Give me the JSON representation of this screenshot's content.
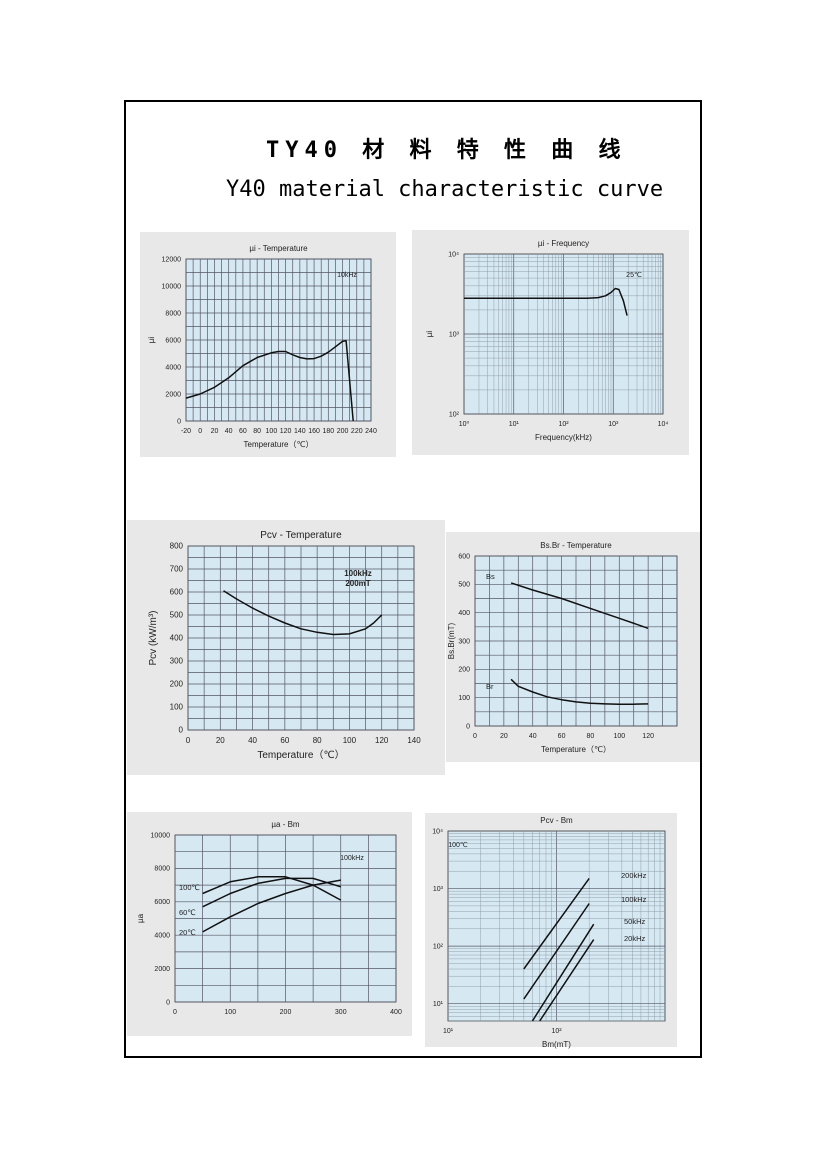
{
  "page": {
    "title_cn": "TY40 材 料 特 性 曲 线",
    "title_en": "Y40 material characteristic curve"
  },
  "chart_data": [
    {
      "id": "mu-temp",
      "type": "line",
      "title": "µi - Temperature",
      "xlabel": "Temperature（℃）",
      "ylabel": "µi",
      "xscale": "linear",
      "yscale": "linear",
      "xlim": [
        -20,
        240
      ],
      "ylim": [
        0,
        12000
      ],
      "xticks": [
        -20,
        0,
        20,
        40,
        60,
        80,
        100,
        120,
        140,
        160,
        180,
        200,
        220,
        240
      ],
      "yticks": [
        0,
        2000,
        4000,
        6000,
        8000,
        10000,
        12000
      ],
      "grid": true,
      "annotations": [
        {
          "text": "10kHz",
          "x": 200,
          "y": 10300
        }
      ],
      "series": [
        {
          "x": [
            -20,
            0,
            20,
            40,
            60,
            80,
            100,
            110,
            120,
            130,
            140,
            150,
            160,
            170,
            180,
            190,
            200,
            205,
            208,
            215
          ],
          "y": [
            1700,
            2000,
            2500,
            3200,
            4100,
            4700,
            5050,
            5150,
            5150,
            4900,
            4700,
            4600,
            4620,
            4800,
            5100,
            5500,
            5900,
            5950,
            4200,
            0
          ]
        }
      ]
    },
    {
      "id": "mu-freq",
      "type": "line",
      "title": "µi - Frequency",
      "xlabel": "Frequency(kHz)",
      "ylabel": "µi",
      "xscale": "log",
      "yscale": "log",
      "xlim": [
        1,
        10000
      ],
      "ylim": [
        100,
        10000
      ],
      "xticks": [
        1,
        10,
        100,
        1000,
        10000
      ],
      "xticklabels": [
        "10⁰",
        "10¹",
        "10²",
        "10³",
        "10⁴"
      ],
      "yticks": [
        100,
        1000,
        10000
      ],
      "yticklabels": [
        "10²",
        "10³",
        "10⁴"
      ],
      "grid": true,
      "annotations": [
        {
          "text": "25℃",
          "x": 2500,
          "y": 3000
        }
      ],
      "series": [
        {
          "x": [
            1,
            10,
            100,
            300,
            500,
            700,
            900,
            1100,
            1300,
            1600,
            1900
          ],
          "y": [
            2800,
            2800,
            2800,
            2800,
            2850,
            3000,
            3300,
            3700,
            3600,
            2600,
            1700
          ]
        }
      ]
    },
    {
      "id": "pcv-temp",
      "type": "line",
      "title": "Pcv - Temperature",
      "xlabel": "Temperature（℃）",
      "ylabel": "Pcv (kW/m³)",
      "xscale": "linear",
      "yscale": "linear",
      "xlim": [
        0,
        140
      ],
      "ylim": [
        0,
        800
      ],
      "xticks": [
        0,
        20,
        40,
        60,
        80,
        100,
        120,
        140
      ],
      "yticks": [
        0,
        100,
        200,
        300,
        400,
        500,
        600,
        700,
        800
      ],
      "grid": true,
      "annotations": [
        {
          "text": "100kHz",
          "x": 112,
          "y": 670
        },
        {
          "text": "200mT",
          "x": 112,
          "y": 630
        }
      ],
      "series": [
        {
          "x": [
            22,
            30,
            40,
            50,
            60,
            70,
            80,
            90,
            100,
            110,
            115,
            120
          ],
          "y": [
            605,
            570,
            530,
            495,
            465,
            440,
            425,
            415,
            418,
            440,
            465,
            500
          ]
        }
      ]
    },
    {
      "id": "bsbr-temp",
      "type": "line",
      "title": "Bs.Br - Temperature",
      "xlabel": "Temperature（℃）",
      "ylabel": "Bs.Br(mT)",
      "xscale": "linear",
      "yscale": "linear",
      "xlim": [
        0,
        140
      ],
      "ylim": [
        0,
        600
      ],
      "xticks": [
        0,
        20,
        40,
        60,
        80,
        100,
        120
      ],
      "yticks": [
        0,
        100,
        200,
        300,
        400,
        500,
        600
      ],
      "grid": true,
      "series": [
        {
          "name": "Bs",
          "x": [
            25,
            40,
            60,
            80,
            100,
            120
          ],
          "y": [
            505,
            480,
            450,
            415,
            380,
            345
          ]
        },
        {
          "name": "Br",
          "x": [
            25,
            30,
            40,
            50,
            60,
            70,
            80,
            90,
            100,
            110,
            120
          ],
          "y": [
            165,
            140,
            120,
            103,
            93,
            85,
            80,
            78,
            77,
            77,
            78
          ]
        }
      ]
    },
    {
      "id": "mua-bm",
      "type": "line",
      "title": "µa - Bm",
      "xlabel": "",
      "ylabel": "µa",
      "xscale": "linear",
      "yscale": "linear",
      "xlim": [
        0,
        400
      ],
      "ylim": [
        0,
        10000
      ],
      "xticks": [
        0,
        100,
        200,
        300,
        400
      ],
      "yticks": [
        0,
        2000,
        4000,
        6000,
        8000,
        10000
      ],
      "grid": true,
      "annotations": [
        {
          "text": "100kHz",
          "x": 335,
          "y": 8900
        }
      ],
      "series": [
        {
          "name": "100℃",
          "x": [
            50,
            100,
            150,
            200,
            250,
            300
          ],
          "y": [
            6500,
            7200,
            7500,
            7500,
            7000,
            6100
          ]
        },
        {
          "name": "60℃",
          "x": [
            50,
            100,
            150,
            200,
            250,
            300
          ],
          "y": [
            5700,
            6500,
            7100,
            7400,
            7400,
            6900
          ]
        },
        {
          "name": "20℃",
          "x": [
            50,
            100,
            150,
            200,
            250,
            300
          ],
          "y": [
            4200,
            5100,
            5900,
            6500,
            7000,
            7300
          ]
        }
      ]
    },
    {
      "id": "pcv-bm",
      "type": "line",
      "title": "Pcv - Bm",
      "xlabel": "Bm(mT)",
      "ylabel": "",
      "xscale": "log",
      "yscale": "log",
      "xlim": [
        10,
        1000
      ],
      "ylim": [
        5,
        10000
      ],
      "xticks": [
        10,
        100
      ],
      "xticklabels": [
        "10¹",
        "10²"
      ],
      "yticks": [
        10,
        100,
        1000,
        10000
      ],
      "yticklabels": [
        "10¹",
        "10²",
        "10³",
        "10⁴"
      ],
      "grid": true,
      "annotations": [
        {
          "text": "100℃",
          "x": 12,
          "y": 7000
        }
      ],
      "series": [
        {
          "name": "200kHz",
          "x": [
            50,
            200
          ],
          "y": [
            40,
            1500
          ]
        },
        {
          "name": "100kHz",
          "x": [
            50,
            200
          ],
          "y": [
            12,
            550
          ]
        },
        {
          "name": "50kHz",
          "x": [
            60,
            220
          ],
          "y": [
            5,
            240
          ]
        },
        {
          "name": "20kHz",
          "x": [
            70,
            220
          ],
          "y": [
            5,
            130
          ]
        }
      ]
    }
  ]
}
